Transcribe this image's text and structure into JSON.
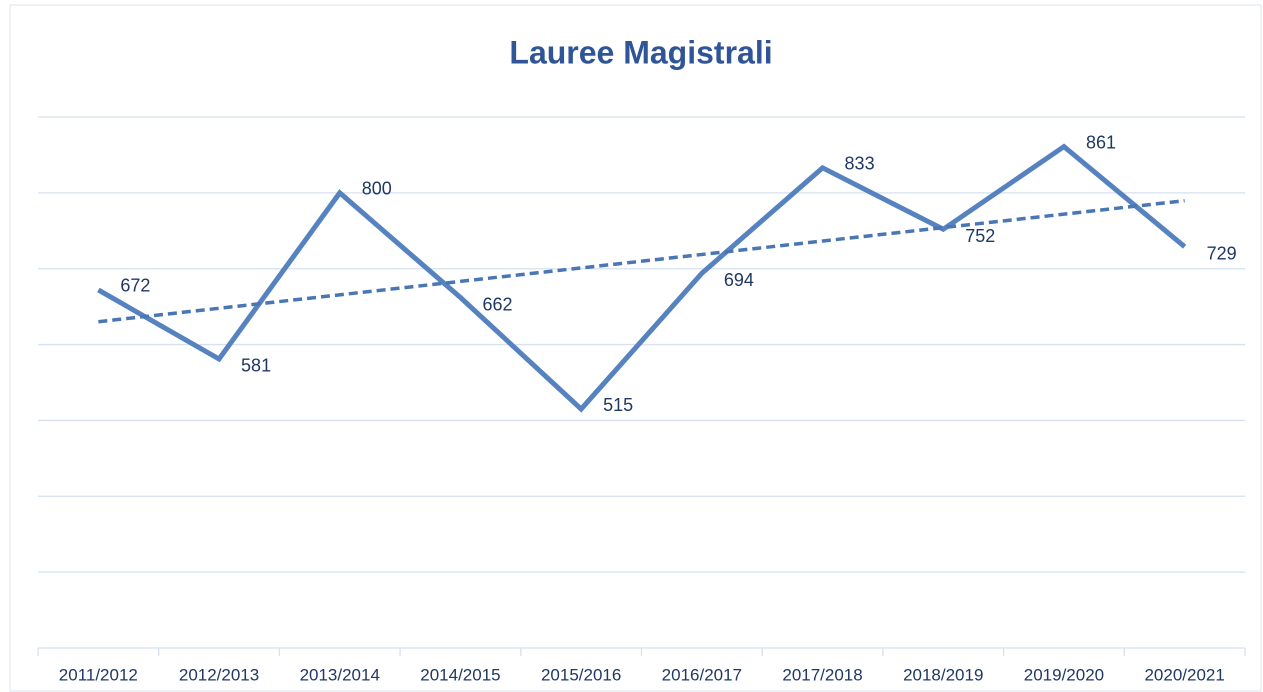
{
  "chart_data": {
    "type": "line",
    "title": "Lauree Magistrali",
    "categories": [
      "2011/2012",
      "2012/2013",
      "2013/2014",
      "2014/2015",
      "2015/2016",
      "2016/2017",
      "2017/2018",
      "2018/2019",
      "2019/2020",
      "2020/2021"
    ],
    "series": [
      {
        "name": "Lauree Magistrali",
        "color": "#5682c0",
        "values": [
          672,
          581,
          800,
          662,
          515,
          694,
          833,
          752,
          861,
          729
        ]
      }
    ],
    "trendline": {
      "style": "dashed",
      "color": "#4a76b3"
    },
    "ylim": [
      200,
      900
    ],
    "yticks": [
      200,
      300,
      400,
      500,
      600,
      700,
      800,
      900
    ],
    "grid": true
  }
}
